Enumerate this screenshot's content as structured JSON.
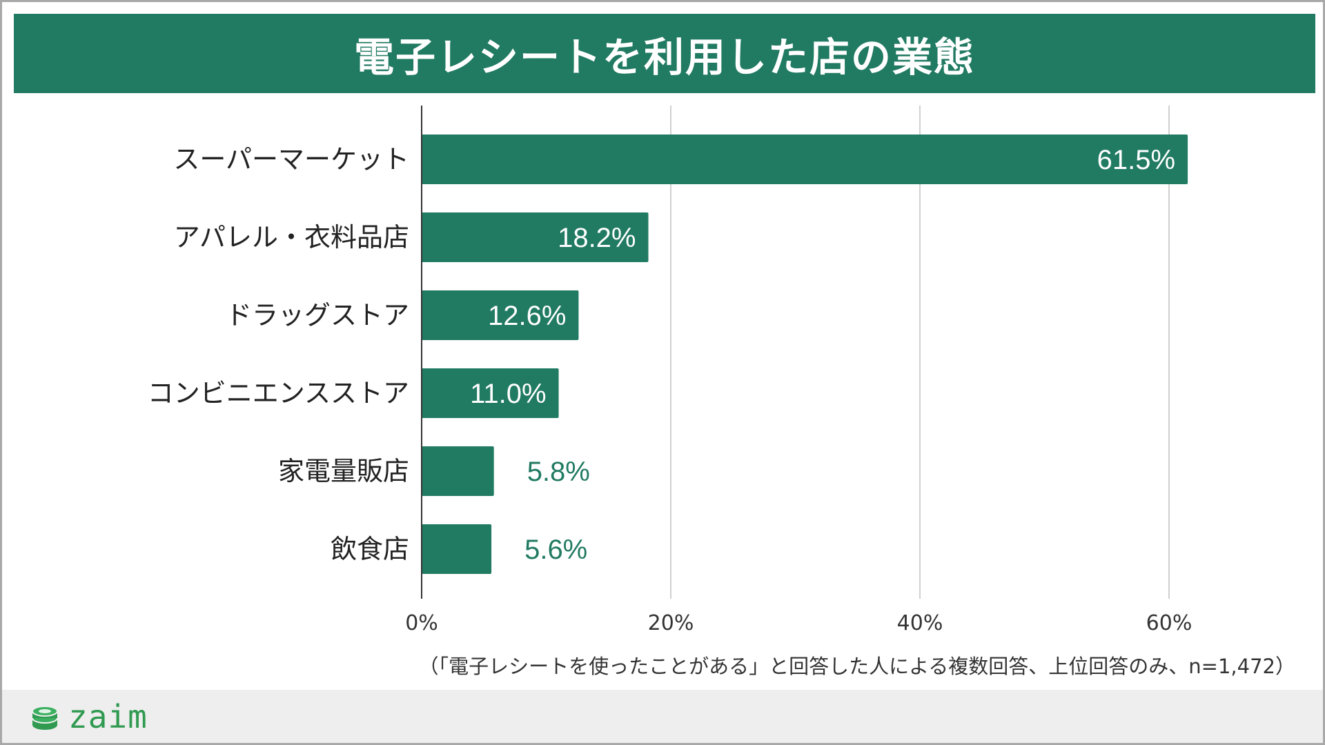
{
  "title": "電子レシートを利用した店の業態",
  "note": "（「電子レシートを使ったことがある」と回答した人による複数回答、上位回答のみ、n=1,472）",
  "logo": {
    "text": "zaim",
    "icon": "coin-stack-icon"
  },
  "colors": {
    "bar": "#217a62",
    "label_inside": "#ffffff",
    "label_outside": "#217a62",
    "grid": "#d0d0d0",
    "axis": "#333333"
  },
  "chart_data": {
    "type": "bar",
    "orientation": "horizontal",
    "title": "電子レシートを利用した店の業態",
    "categories": [
      "スーパーマーケット",
      "アパレル・衣料品店",
      "ドラッグストア",
      "コンビニエンスストア",
      "家電量販店",
      "飲食店"
    ],
    "values": [
      61.5,
      18.2,
      12.6,
      11.0,
      5.8,
      5.6
    ],
    "value_labels": [
      "61.5%",
      "18.2%",
      "12.6%",
      "11.0%",
      "5.8%",
      "5.6%"
    ],
    "xlim": [
      0,
      70
    ],
    "xticks": [
      0,
      20,
      40,
      60
    ],
    "xtick_labels": [
      "0%",
      "20%",
      "40%",
      "60%"
    ],
    "xlabel": "",
    "ylabel": "",
    "grid": true,
    "legend": "none"
  }
}
